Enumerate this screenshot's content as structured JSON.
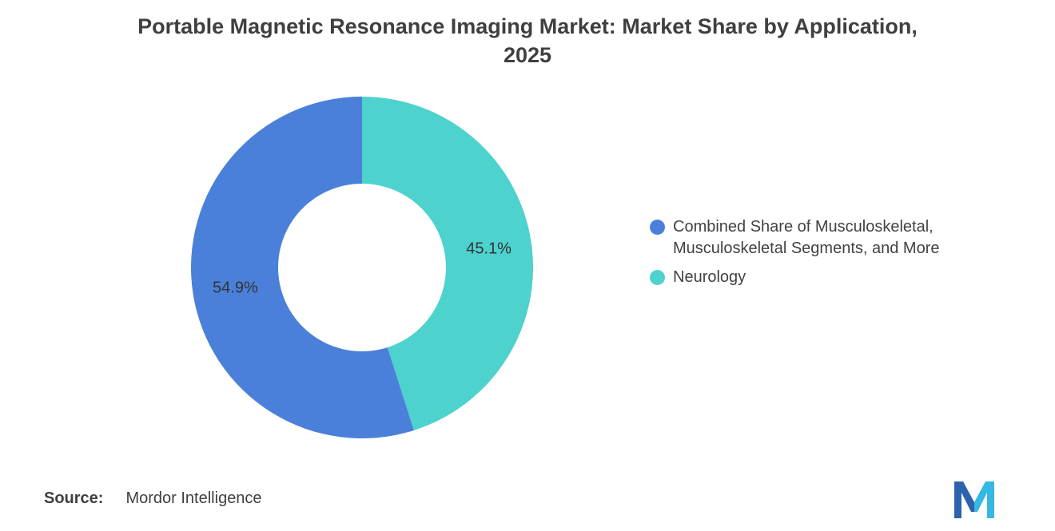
{
  "title": "Portable Magnetic Resonance Imaging Market: Market Share by Application,\n2025",
  "source": {
    "label": "Source:",
    "value": "Mordor Intelligence"
  },
  "logo": {
    "name": "mordor-intelligence-logo",
    "colors": [
      "#2D63AD",
      "#36B7E4"
    ]
  },
  "chart_data": {
    "type": "pie",
    "donut": true,
    "title": "Portable Magnetic Resonance Imaging Market: Market Share by Application, 2025",
    "units": "%",
    "total": 100,
    "start_angle_deg": -90,
    "direction": "clockwise",
    "draw_order": [
      1,
      0
    ],
    "inner_radius_ratio": 0.49,
    "legend_position": "right",
    "series": [
      {
        "name": "Combined Share of Musculoskeletal,\nMusculoskeletal Segments, and More",
        "value": 54.9,
        "label": "54.9%",
        "color": "#4A80D9"
      },
      {
        "name": "Neurology",
        "value": 45.1,
        "label": "45.1%",
        "color": "#4DD2CE"
      }
    ]
  }
}
